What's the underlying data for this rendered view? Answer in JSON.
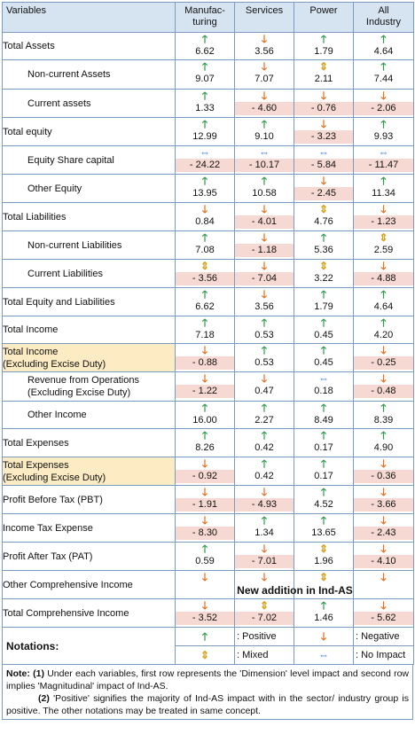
{
  "header": {
    "variables": "Variables",
    "col1": "Manufac-turing",
    "col1_line1": "Manufac-",
    "col1_line2": "turing",
    "col2": "Services",
    "col3": "Power",
    "col4_line1": "All",
    "col4_line2": "Industry"
  },
  "rows": [
    {
      "label": "Total Assets",
      "arrows": [
        "up",
        "down",
        "up",
        "up"
      ],
      "values": [
        "6.62",
        "3.56",
        "1.79",
        "4.64"
      ]
    },
    {
      "label": "Non-current Assets",
      "arrows": [
        "up",
        "down",
        "mixed",
        "up"
      ],
      "values": [
        "9.07",
        "7.07",
        "2.11",
        "7.44"
      ]
    },
    {
      "label": "Current assets",
      "arrows": [
        "up",
        "down",
        "down",
        "down"
      ],
      "values": [
        "1.33",
        "- 4.60",
        "- 0.76",
        "- 2.06"
      ]
    },
    {
      "label": "Total equity",
      "arrows": [
        "up",
        "up",
        "down",
        "up"
      ],
      "values": [
        "12.99",
        "9.10",
        "- 3.23",
        "9.93"
      ]
    },
    {
      "label": "Equity Share capital",
      "arrows": [
        "none",
        "none",
        "none",
        "none"
      ],
      "values": [
        "- 24.22",
        "- 10.17",
        "- 5.84",
        "- 11.47"
      ]
    },
    {
      "label": "Other Equity",
      "arrows": [
        "up",
        "up",
        "down",
        "up"
      ],
      "values": [
        "13.95",
        "10.58",
        "- 2.45",
        "11.34"
      ]
    },
    {
      "label": "Total Liabilities",
      "arrows": [
        "down",
        "down",
        "mixed",
        "down"
      ],
      "values": [
        "0.84",
        "- 4.01",
        "4.76",
        "- 1.23"
      ]
    },
    {
      "label": "Non-current Liabilities",
      "arrows": [
        "up",
        "down",
        "up",
        "mixed"
      ],
      "values": [
        "7.08",
        "- 1.18",
        "5.36",
        "2.59"
      ]
    },
    {
      "label": "Current Liabilities",
      "arrows": [
        "mixed",
        "down",
        "mixed",
        "down"
      ],
      "values": [
        "- 3.56",
        "- 7.04",
        "3.22",
        "- 4.88"
      ]
    },
    {
      "label": "Total Equity and Liabilities",
      "arrows": [
        "up",
        "down",
        "up",
        "up"
      ],
      "values": [
        "6.62",
        "3.56",
        "1.79",
        "4.64"
      ]
    },
    {
      "label": "Total Income",
      "arrows": [
        "up",
        "up",
        "up",
        "up"
      ],
      "values": [
        "7.18",
        "0.53",
        "0.45",
        "4.20"
      ]
    },
    {
      "label_line1": "Total Income",
      "label_line2": "(Excluding Excise Duty)",
      "arrows": [
        "down",
        "up",
        "up",
        "down"
      ],
      "values": [
        "- 0.88",
        "0.53",
        "0.45",
        "- 0.25"
      ]
    },
    {
      "label_line1": "Revenue from Operations",
      "label_line2": "(Excluding Excise Duty)",
      "arrows": [
        "down",
        "down",
        "none",
        "down"
      ],
      "values": [
        "- 1.22",
        "0.47",
        "0.18",
        "- 0.48"
      ]
    },
    {
      "label": "Other Income",
      "arrows": [
        "up",
        "up",
        "up",
        "up"
      ],
      "values": [
        "16.00",
        "2.27",
        "8.49",
        "8.39"
      ]
    },
    {
      "label": "Total Expenses",
      "arrows": [
        "up",
        "up",
        "up",
        "up"
      ],
      "values": [
        "8.26",
        "0.42",
        "0.17",
        "4.90"
      ]
    },
    {
      "label_line1": "Total Expenses",
      "label_line2": "(Excluding Excise Duty)",
      "arrows": [
        "down",
        "up",
        "up",
        "down"
      ],
      "values": [
        "- 0.92",
        "0.42",
        "0.17",
        "- 0.36"
      ]
    },
    {
      "label": "Profit Before Tax (PBT)",
      "arrows": [
        "down",
        "down",
        "up",
        "down"
      ],
      "values": [
        "- 1.91",
        "- 4.93",
        "4.52",
        "- 3.66"
      ]
    },
    {
      "label": "Income Tax Expense",
      "arrows": [
        "down",
        "up",
        "up",
        "down"
      ],
      "values": [
        "- 8.30",
        "1.34",
        "13.65",
        "- 2.43"
      ]
    },
    {
      "label": "Profit After Tax (PAT)",
      "arrows": [
        "up",
        "down",
        "mixed",
        "down"
      ],
      "values": [
        "0.59",
        "- 7.01",
        "1.96",
        "- 4.10"
      ]
    },
    {
      "label": "Other Comprehensive Income",
      "arrows": [
        "down",
        "down",
        "mixed",
        "down"
      ],
      "span_text": "New addition in Ind-AS"
    },
    {
      "label": "Total Comprehensive Income",
      "arrows": [
        "down",
        "mixed",
        "up",
        "down"
      ],
      "values": [
        "- 3.52",
        "- 7.02",
        "1.46",
        "- 5.62"
      ]
    }
  ],
  "arrow_glyphs": {
    "up": "🡑",
    "down": "🡓",
    "mixed": "⇕",
    "none": "⇔"
  },
  "arrow_colors": {
    "up": "#2e9a4d",
    "down": "#e2701f",
    "mixed": "#d7a21a",
    "none": "#2a70c2"
  },
  "negative_highlight": "#f7d9d3",
  "header_bg": "#d6e4f2",
  "excise_bg": "#fdebc4",
  "legend": {
    "title": "Notations:",
    "positive": ": Positive",
    "negative": ": Negative",
    "mixed": ": Mixed",
    "no_impact": ": No Impact"
  },
  "notes": {
    "note_label": "Note:",
    "n1_label": "(1)",
    "n1_text": " Under each variables, first row represents the 'Dimension' level impact and second row implies 'Magnitudinal' impact of Ind-AS.",
    "n2_label": "(2)",
    "n2_text": " 'Positive' signifies the majority of Ind-AS impact with in the sector/ industry group is positive. The other notations may be treated in same concept."
  }
}
